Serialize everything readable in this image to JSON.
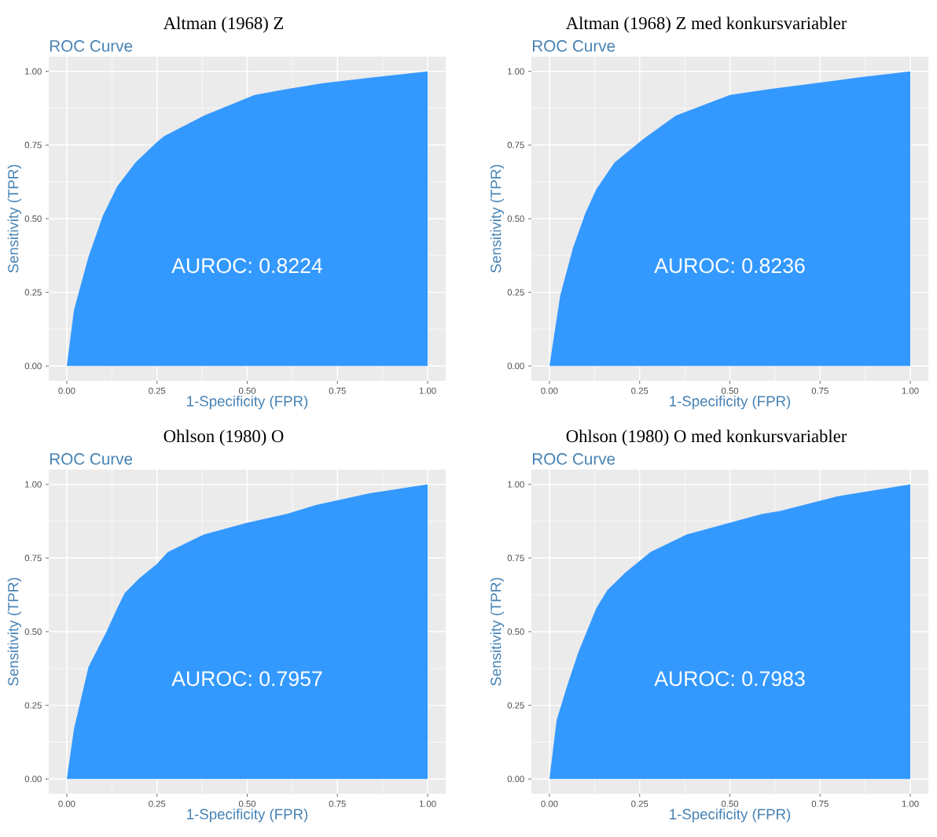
{
  "chart_data": [
    {
      "type": "area",
      "title": "Altman (1968) Z",
      "subtitle": "ROC Curve",
      "xlabel": "1-Specificity (FPR)",
      "ylabel": "Sensitivity (TPR)",
      "annotations": [
        "AUROC: 0.8224"
      ],
      "color": "#3399ff",
      "grid": true,
      "x": [
        0,
        0.02,
        0.06,
        0.1,
        0.14,
        0.19,
        0.25,
        0.27,
        0.38,
        0.46,
        0.52,
        0.61,
        0.71,
        0.85,
        1.0
      ],
      "values": [
        0,
        0.19,
        0.37,
        0.51,
        0.61,
        0.69,
        0.76,
        0.78,
        0.85,
        0.89,
        0.92,
        0.94,
        0.96,
        0.98,
        1.0
      ],
      "xlim": [
        -0.05,
        1.05
      ],
      "ylim": [
        -0.05,
        1.05
      ],
      "xticks": [
        {
          "value": 0,
          "label": "0.00"
        },
        {
          "value": 0.25,
          "label": "0.25"
        },
        {
          "value": 0.5,
          "label": "0.50"
        },
        {
          "value": 0.75,
          "label": "0.75"
        },
        {
          "value": 1,
          "label": "1.00"
        }
      ],
      "yticks": [
        {
          "value": 0,
          "label": "0.00"
        },
        {
          "value": 0.25,
          "label": "0.25"
        },
        {
          "value": 0.5,
          "label": "0.50"
        },
        {
          "value": 0.75,
          "label": "0.75"
        },
        {
          "value": 1,
          "label": "1.00"
        }
      ]
    },
    {
      "type": "area",
      "title": "Altman (1968) Z med konkursvariabler",
      "subtitle": "ROC Curve",
      "xlabel": "1-Specificity (FPR)",
      "ylabel": "Sensitivity (TPR)",
      "annotations": [
        "AUROC: 0.8236"
      ],
      "color": "#3399ff",
      "grid": true,
      "x": [
        0,
        0.03,
        0.065,
        0.1,
        0.13,
        0.18,
        0.26,
        0.35,
        0.5,
        0.61,
        0.8,
        0.86,
        1.0
      ],
      "values": [
        0,
        0.24,
        0.4,
        0.52,
        0.6,
        0.69,
        0.77,
        0.85,
        0.92,
        0.94,
        0.97,
        0.98,
        1.0
      ],
      "xlim": [
        -0.05,
        1.05
      ],
      "ylim": [
        -0.05,
        1.05
      ],
      "xticks": [
        {
          "value": 0,
          "label": "0.00"
        },
        {
          "value": 0.25,
          "label": "0.25"
        },
        {
          "value": 0.5,
          "label": "0.50"
        },
        {
          "value": 0.75,
          "label": "0.75"
        },
        {
          "value": 1,
          "label": "1.00"
        }
      ],
      "yticks": [
        {
          "value": 0,
          "label": "0.00"
        },
        {
          "value": 0.25,
          "label": "0.25"
        },
        {
          "value": 0.5,
          "label": "0.50"
        },
        {
          "value": 0.75,
          "label": "0.75"
        },
        {
          "value": 1,
          "label": "1.00"
        }
      ]
    },
    {
      "type": "area",
      "title": "Ohlson (1980) O",
      "subtitle": "ROC Curve",
      "xlabel": "1-Specificity (FPR)",
      "ylabel": "Sensitivity (TPR)",
      "annotations": [
        "AUROC: 0.7957"
      ],
      "color": "#3399ff",
      "grid": true,
      "x": [
        0,
        0.02,
        0.06,
        0.11,
        0.14,
        0.16,
        0.2,
        0.25,
        0.28,
        0.38,
        0.5,
        0.61,
        0.69,
        0.84,
        1.0
      ],
      "values": [
        0,
        0.17,
        0.38,
        0.5,
        0.58,
        0.63,
        0.68,
        0.73,
        0.77,
        0.83,
        0.87,
        0.9,
        0.93,
        0.97,
        1.0
      ],
      "xlim": [
        -0.05,
        1.05
      ],
      "ylim": [
        -0.05,
        1.05
      ],
      "xticks": [
        {
          "value": 0,
          "label": "0.00"
        },
        {
          "value": 0.25,
          "label": "0.25"
        },
        {
          "value": 0.5,
          "label": "0.50"
        },
        {
          "value": 0.75,
          "label": "0.75"
        },
        {
          "value": 1,
          "label": "1.00"
        }
      ],
      "yticks": [
        {
          "value": 0,
          "label": "0.00"
        },
        {
          "value": 0.25,
          "label": "0.25"
        },
        {
          "value": 0.5,
          "label": "0.50"
        },
        {
          "value": 0.75,
          "label": "0.75"
        },
        {
          "value": 1,
          "label": "1.00"
        }
      ]
    },
    {
      "type": "area",
      "title": "Ohlson (1980) O med konkursvariabler",
      "subtitle": "ROC Curve",
      "xlabel": "1-Specificity (FPR)",
      "ylabel": "Sensitivity (TPR)",
      "annotations": [
        "AUROC: 0.7983"
      ],
      "color": "#3399ff",
      "grid": true,
      "x": [
        0,
        0.02,
        0.05,
        0.08,
        0.13,
        0.16,
        0.21,
        0.28,
        0.38,
        0.5,
        0.59,
        0.64,
        0.8,
        1.0
      ],
      "values": [
        0,
        0.2,
        0.32,
        0.43,
        0.58,
        0.64,
        0.7,
        0.77,
        0.83,
        0.87,
        0.9,
        0.91,
        0.96,
        1.0
      ],
      "xlim": [
        -0.05,
        1.05
      ],
      "ylim": [
        -0.05,
        1.05
      ],
      "xticks": [
        {
          "value": 0,
          "label": "0.00"
        },
        {
          "value": 0.25,
          "label": "0.25"
        },
        {
          "value": 0.5,
          "label": "0.50"
        },
        {
          "value": 0.75,
          "label": "0.75"
        },
        {
          "value": 1,
          "label": "1.00"
        }
      ],
      "yticks": [
        {
          "value": 0,
          "label": "0.00"
        },
        {
          "value": 0.25,
          "label": "0.25"
        },
        {
          "value": 0.5,
          "label": "0.50"
        },
        {
          "value": 0.75,
          "label": "0.75"
        },
        {
          "value": 1,
          "label": "1.00"
        }
      ]
    }
  ]
}
